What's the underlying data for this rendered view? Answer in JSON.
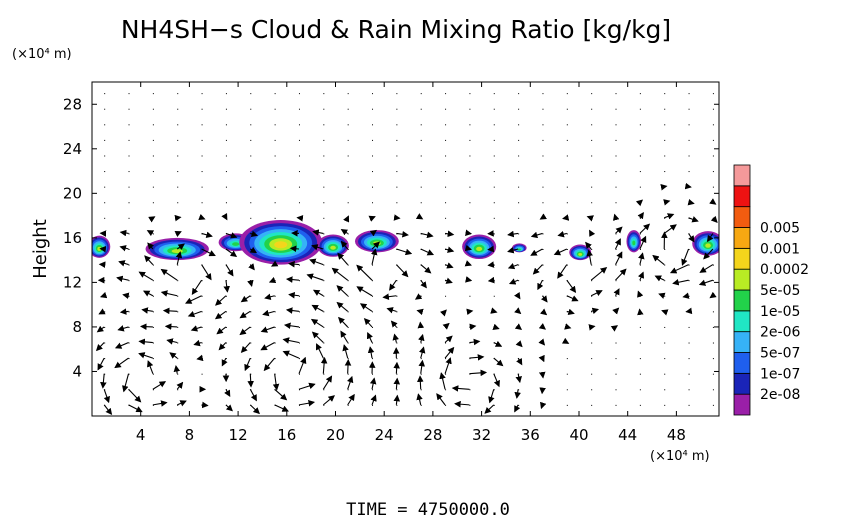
{
  "chart_data": {
    "type": "heatmap",
    "title": "NH4SH−s Cloud & Rain Mixing Ratio [kg/kg]",
    "ylabel": "Height",
    "y_unit": "(×10⁴ m)",
    "x_unit": "(×10⁴ m)",
    "xlim": [
      0,
      51.5
    ],
    "ylim": [
      0,
      30
    ],
    "x_ticks": [
      "4",
      "8",
      "12",
      "16",
      "20",
      "24",
      "28",
      "32",
      "36",
      "40",
      "44",
      "48"
    ],
    "y_ticks": [
      "4",
      "8",
      "12",
      "16",
      "20",
      "24",
      "28"
    ],
    "colorbar": {
      "labels": [
        "0.005",
        "0.001",
        "0.0002",
        "5e-05",
        "1e-05",
        "2e-06",
        "5e-07",
        "1e-07",
        "2e-08"
      ],
      "colors": [
        "#9a1fa8",
        "#1a24b8",
        "#1f5fee",
        "#36b2f7",
        "#20e6c4",
        "#22d24a",
        "#b8ec24",
        "#f4d51c",
        "#f7a812",
        "#f25c10",
        "#ee1212",
        "#f5999a"
      ]
    },
    "cloud_blobs": [
      {
        "x": 0.6,
        "y": 15.2,
        "rx": 0.9,
        "ry": 1.0,
        "level": 6
      },
      {
        "x": 7.0,
        "y": 15.0,
        "rx": 2.6,
        "ry": 1.0,
        "level": 6
      },
      {
        "x": 11.8,
        "y": 15.6,
        "rx": 1.4,
        "ry": 0.8,
        "level": 5
      },
      {
        "x": 15.5,
        "y": 15.6,
        "rx": 3.4,
        "ry": 2.0,
        "level": 7
      },
      {
        "x": 19.8,
        "y": 15.3,
        "rx": 1.3,
        "ry": 1.0,
        "level": 6
      },
      {
        "x": 23.4,
        "y": 15.7,
        "rx": 1.8,
        "ry": 1.0,
        "level": 6
      },
      {
        "x": 31.8,
        "y": 15.2,
        "rx": 1.4,
        "ry": 1.1,
        "level": 6
      },
      {
        "x": 35.1,
        "y": 15.1,
        "rx": 0.6,
        "ry": 0.4,
        "level": 5
      },
      {
        "x": 40.1,
        "y": 14.7,
        "rx": 0.9,
        "ry": 0.7,
        "level": 6
      },
      {
        "x": 44.5,
        "y": 15.7,
        "rx": 0.6,
        "ry": 1.0,
        "level": 5
      },
      {
        "x": 50.6,
        "y": 15.5,
        "rx": 1.3,
        "ry": 1.1,
        "level": 6
      }
    ]
  },
  "time_label": "TIME  =  4750000.0"
}
